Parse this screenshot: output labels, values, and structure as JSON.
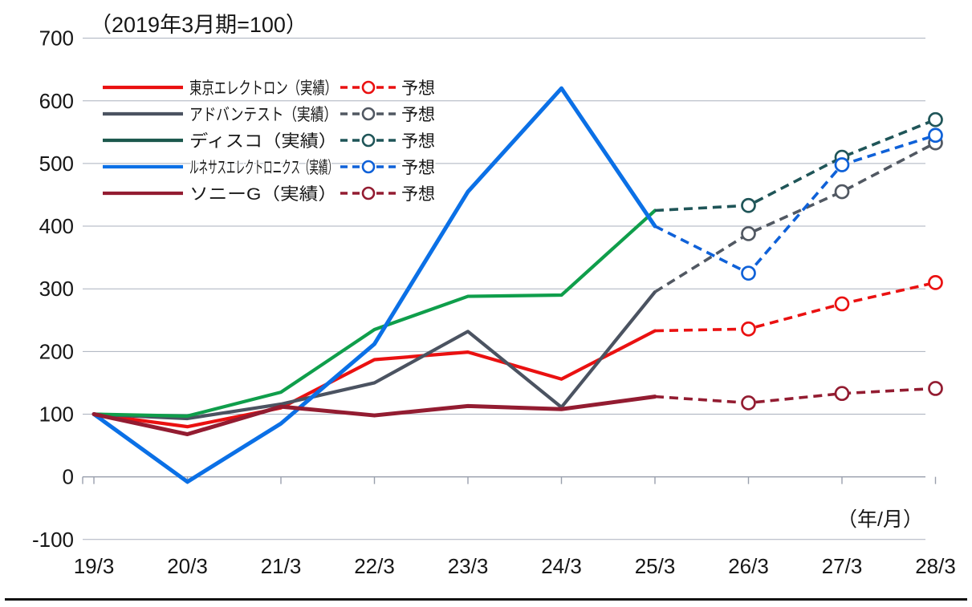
{
  "chart_title": "（2019年3月期=100）",
  "x_axis_unit": "（年/月）",
  "legend": {
    "forecast_label": "予想"
  },
  "chart_data": {
    "type": "line",
    "title": "（2019年3月期=100）",
    "x_axis_note": "（年/月）",
    "categories": [
      "19/3",
      "20/3",
      "21/3",
      "22/3",
      "23/3",
      "24/3",
      "25/3",
      "26/3",
      "27/3",
      "28/3"
    ],
    "y_ticks": [
      700,
      600,
      500,
      400,
      300,
      200,
      100,
      0,
      -100
    ],
    "ylim": [
      -100,
      700
    ],
    "grid": true,
    "legend_position": "top-left",
    "forecast_start_index": 6,
    "forecast_marker": "open-circle",
    "series": [
      {
        "name": "東京エレクトロン",
        "legend_actual": "東京エレクトロン（実績）",
        "legend_forecast": "予想",
        "color": "#ea1111",
        "forecast_color": "#ea1111",
        "actual": [
          100,
          80,
          110,
          187,
          199,
          156,
          233
        ],
        "forecast": [
          233,
          236,
          276,
          310
        ]
      },
      {
        "name": "アドバンテスト",
        "legend_actual": "アドバンテスト（実績）",
        "legend_forecast": "予想",
        "color": "#4b5361",
        "forecast_color": "#515862",
        "actual": [
          100,
          93,
          116,
          150,
          232,
          111,
          295
        ],
        "forecast": [
          295,
          388,
          455,
          533
        ]
      },
      {
        "name": "ディスコ",
        "legend_actual": "ディスコ（実績）",
        "legend_forecast": "予想",
        "color": "#0f9e4b",
        "forecast_color": "#1f5558",
        "legend_swatch_color": "#1c584d",
        "actual": [
          100,
          97,
          135,
          235,
          288,
          290,
          425
        ],
        "forecast": [
          425,
          433,
          510,
          570
        ]
      },
      {
        "name": "ルネサスエレクトロニクス",
        "legend_actual": "ルネサスエレクトロニクス（実績）",
        "legend_forecast": "予想",
        "color": "#0b70e6",
        "forecast_color": "#0f61d8",
        "actual": [
          100,
          -8,
          85,
          212,
          455,
          620,
          400
        ],
        "forecast": [
          400,
          325,
          498,
          545
        ]
      },
      {
        "name": "ソニーG",
        "legend_actual": "ソニーG（実績）",
        "legend_forecast": "予想",
        "color": "#931c31",
        "forecast_color": "#931c31",
        "actual": [
          100,
          68,
          112,
          98,
          113,
          108,
          128
        ],
        "forecast": [
          128,
          118,
          133,
          141
        ]
      }
    ]
  }
}
